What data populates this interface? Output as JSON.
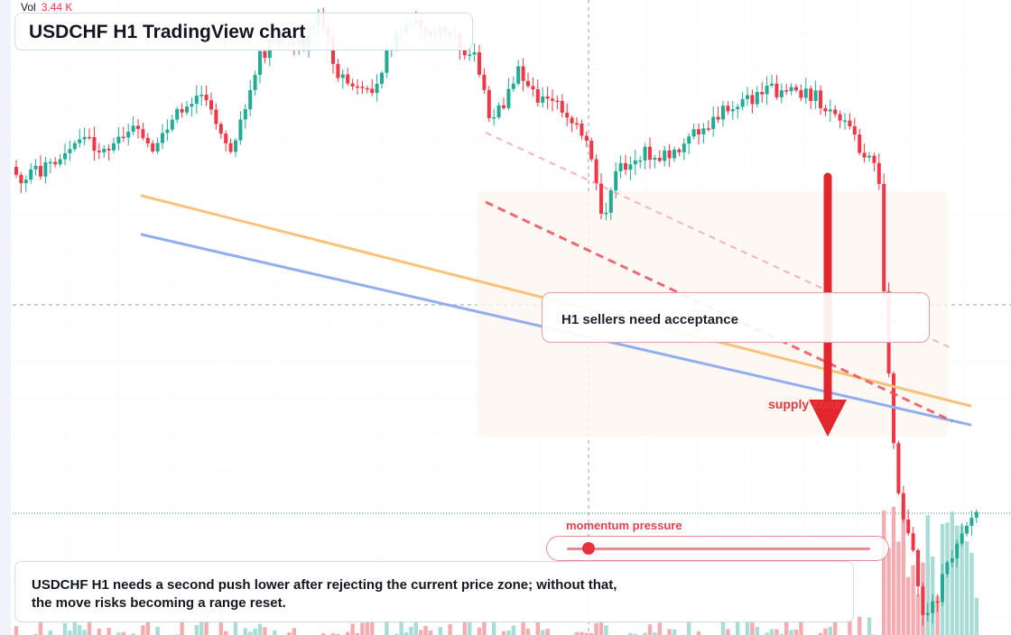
{
  "header": {
    "vol_label": "Vol",
    "vol_value": "3.44 K"
  },
  "title": "USDCHF H1 TradingView chart",
  "callout": {
    "text": "H1 sellers need acceptance",
    "zone_label": "supply zone"
  },
  "momentum": {
    "label": "momentum pressure",
    "level": 0.07
  },
  "note": {
    "line1": "USDCHF H1 needs a second push lower after rejecting the current price zone; without that,",
    "line2": "the move risks becoming a range reset."
  },
  "colors": {
    "up": "#22ab94",
    "down": "#f23645",
    "volume_up": "#9fd8cf",
    "volume_down": "#f4a3a8",
    "trendline_orange": "#f8c27a",
    "trendline_blue": "#93aef0",
    "zone_red": "#e8535c",
    "arrow_red": "#e3262c",
    "zone_fill": "#fdf6f1"
  },
  "icons": {
    "arrow": "down-arrow-icon"
  }
}
